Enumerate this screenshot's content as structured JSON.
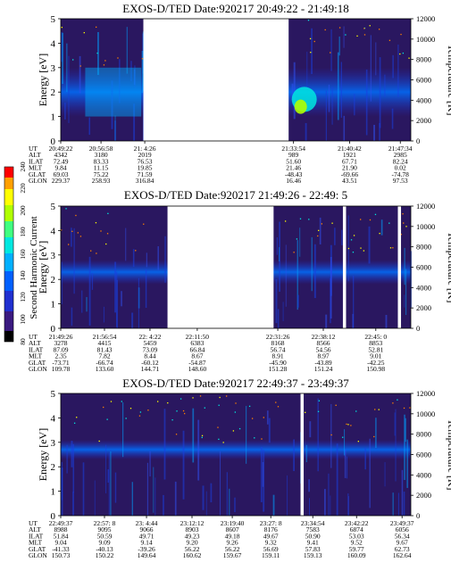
{
  "colors": {
    "background": "#2a1760",
    "gap": "#ffffff",
    "colormap": [
      "#000000",
      "#3a1a80",
      "#2030d0",
      "#0060ff",
      "#00b0ff",
      "#00e8e0",
      "#40ff80",
      "#b0ff00",
      "#ffff00",
      "#ffa000",
      "#ff0000"
    ]
  },
  "colorbar": {
    "label": "Second Harmonic Current",
    "ticks": [
      "80",
      "100",
      "120",
      "140",
      "160",
      "180",
      "200",
      "220",
      "240"
    ],
    "range": [
      80,
      240
    ]
  },
  "ephemeris_labels": [
    "UT",
    "ALT",
    "ILAT",
    "MLT",
    "GLAT",
    "GLON"
  ],
  "chart_data": [
    {
      "type": "heatmap",
      "title": "EXOS-D/TED   Date:920217  20:49:22 - 21:49:18",
      "ylabel": "Energy [eV]",
      "y2label": "Temperature [K]",
      "ylim": [
        0,
        5
      ],
      "y2lim": [
        0,
        12000
      ],
      "yticks": [
        "0",
        "1",
        "2",
        "3",
        "4",
        "5"
      ],
      "y2ticks": [
        "0",
        "2000",
        "4000",
        "6000",
        "8000",
        "10000",
        "12000"
      ],
      "data_gaps_fraction": [
        [
          0.236,
          0.651
        ]
      ],
      "bright_band_ev": [
        1.0,
        3.0
      ],
      "ephemeris": [
        {
          "UT": "20:49:22",
          "ALT": "4342",
          "ILAT": "72.49",
          "MLT": "9.84",
          "GLAT": "69.03",
          "GLON": "229.37"
        },
        {
          "UT": "20:56:58",
          "ALT": "3180",
          "ILAT": "83.33",
          "MLT": "11.15",
          "GLAT": "75.22",
          "GLON": "258.93"
        },
        {
          "UT": "21: 4:26",
          "ALT": "2019",
          "ILAT": "76.53",
          "MLT": "19.85",
          "GLAT": "71.59",
          "GLON": "316.84"
        },
        {
          "UT": "21:33:54",
          "ALT": "989",
          "ILAT": "51.60",
          "MLT": "21.46",
          "GLAT": "-48.43",
          "GLON": "16.46"
        },
        {
          "UT": "21:40:42",
          "ALT": "1921",
          "ILAT": "67.71",
          "MLT": "21.90",
          "GLAT": "-69.66",
          "GLON": "43.51"
        },
        {
          "UT": "21:47:34",
          "ALT": "2985",
          "ILAT": "82.24",
          "MLT": "0.02",
          "GLAT": "-74.78",
          "GLON": "97.53"
        }
      ]
    },
    {
      "type": "heatmap",
      "title": "EXOS-D/TED   Date:920217  21:49:26 - 22:49: 5",
      "ylabel": "Energy [eV]",
      "y2label": "Temperature [K]",
      "ylim": [
        0,
        5
      ],
      "y2lim": [
        0,
        12000
      ],
      "yticks": [
        "0",
        "1",
        "2",
        "3",
        "4",
        "5"
      ],
      "y2ticks": [
        "0",
        "2000",
        "4000",
        "6000",
        "8000",
        "10000",
        "12000"
      ],
      "data_gaps_fraction": [
        [
          0.305,
          0.608
        ],
        [
          0.806,
          0.815
        ],
        [
          0.963,
          0.972
        ]
      ],
      "bright_band_ev": [
        1.8,
        2.8
      ],
      "ephemeris": [
        {
          "UT": "21:49:26",
          "ALT": "3278",
          "ILAT": "87.09",
          "MLT": "2.35",
          "GLAT": "-73.71",
          "GLON": "109.78"
        },
        {
          "UT": "21:56:54",
          "ALT": "4415",
          "ILAT": "81.43",
          "MLT": "7.82",
          "GLAT": "-66.74",
          "GLON": "133.60"
        },
        {
          "UT": "22: 4:22",
          "ALT": "5459",
          "ILAT": "73.09",
          "MLT": "8.44",
          "GLAT": "-60.12",
          "GLON": "144.71"
        },
        {
          "UT": "22:11:50",
          "ALT": "6383",
          "ILAT": "66.84",
          "MLT": "8.67",
          "GLAT": "-54.87",
          "GLON": "148.60"
        },
        {
          "UT": "22:31:26",
          "ALT": "8168",
          "ILAT": "56.74",
          "MLT": "8.91",
          "GLAT": "-45.90",
          "GLON": "151.28"
        },
        {
          "UT": "22:38:12",
          "ALT": "8566",
          "ILAT": "54.56",
          "MLT": "8.97",
          "GLAT": "-43.89",
          "GLON": "151.24"
        },
        {
          "UT": "22:45: 0",
          "ALT": "8853",
          "ILAT": "52.81",
          "MLT": "9.01",
          "GLAT": "-42.25",
          "GLON": "150.98"
        }
      ]
    },
    {
      "type": "heatmap",
      "title": "EXOS-D/TED   Date:920217  22:49:37 - 23:49:37",
      "ylabel": "Energy [eV]",
      "y2label": "Temperature [K]",
      "ylim": [
        0,
        5
      ],
      "y2lim": [
        0,
        12000
      ],
      "yticks": [
        "0",
        "1",
        "2",
        "3",
        "4",
        "5"
      ],
      "y2ticks": [
        "0",
        "2000",
        "4000",
        "6000",
        "8000",
        "10000",
        "12000"
      ],
      "data_gaps_fraction": [
        [
          0.685,
          0.694
        ]
      ],
      "bright_band_ev": [
        2.3,
        3.1
      ],
      "ephemeris": [
        {
          "UT": "22:49:37",
          "ALT": "8988",
          "ILAT": "51.84",
          "MLT": "9.04",
          "GLAT": "-41.33",
          "GLON": "150.73"
        },
        {
          "UT": "22:57: 8",
          "ALT": "9095",
          "ILAT": "50.59",
          "MLT": "9.09",
          "GLAT": "-40.13",
          "GLON": "150.22"
        },
        {
          "UT": "23: 4:44",
          "ALT": "9066",
          "ILAT": "49.71",
          "MLT": "9.14",
          "GLAT": "-39.26",
          "GLON": "149.64"
        },
        {
          "UT": "23:12:12",
          "ALT": "8903",
          "ILAT": "49.23",
          "MLT": "9.20",
          "GLAT": "56.22",
          "GLON": "160.62"
        },
        {
          "UT": "23:19:40",
          "ALT": "8607",
          "ILAT": "49.18",
          "MLT": "9.26",
          "GLAT": "56.22",
          "GLON": "159.67"
        },
        {
          "UT": "23:27: 8",
          "ALT": "8176",
          "ILAT": "49.67",
          "MLT": "9.32",
          "GLAT": "56.69",
          "GLON": "159.11"
        },
        {
          "UT": "23:34:54",
          "ALT": "7583",
          "ILAT": "50.90",
          "MLT": "9.41",
          "GLAT": "57.83",
          "GLON": "159.13"
        },
        {
          "UT": "23:42:22",
          "ALT": "6874",
          "ILAT": "53.03",
          "MLT": "9.52",
          "GLAT": "59.77",
          "GLON": "160.09"
        },
        {
          "UT": "23:49:37",
          "ALT": "6056",
          "ILAT": "56.34",
          "MLT": "9.67",
          "GLAT": "62.73",
          "GLON": "162.64"
        }
      ]
    }
  ]
}
